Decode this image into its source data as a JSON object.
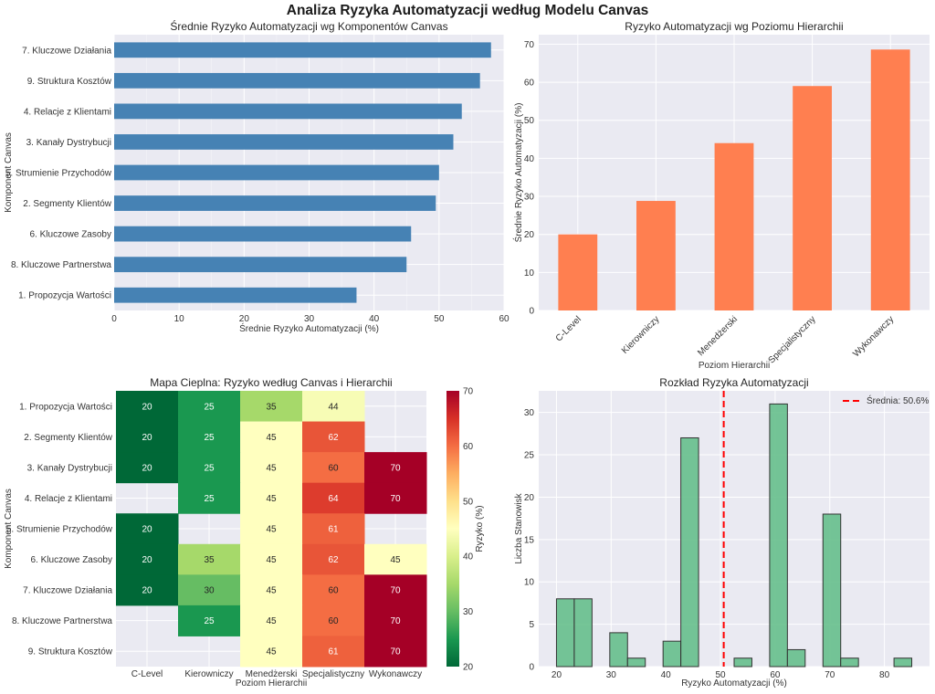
{
  "suptitle": "Analiza Ryzyka Automatyzacji według Modelu Canvas",
  "chart_data": [
    {
      "type": "bar",
      "orientation": "horizontal",
      "title": "Średnie Ryzyko Automatyzacji wg Komponentów Canvas",
      "xlabel": "Średnie Ryzyko Automatyzacji (%)",
      "ylabel": "Komponent Canvas",
      "xlim": [
        0,
        60
      ],
      "xticks": [
        0,
        10,
        20,
        30,
        40,
        50,
        60
      ],
      "categories": [
        "7. Kluczowe Działania",
        "9. Struktura Kosztów",
        "4. Relacje z Klientami",
        "3. Kanały Dystrybucji",
        "5. Strumienie Przychodów",
        "2. Segmenty Klientów",
        "6. Kluczowe Zasoby",
        "8. Kluczowe Partnerstwa",
        "1. Propozycja Wartości"
      ],
      "values": [
        58.0,
        56.3,
        53.5,
        52.2,
        50.0,
        49.5,
        45.7,
        45.0,
        37.3
      ],
      "color": "#4682b4",
      "grid": true
    },
    {
      "type": "bar",
      "title": "Ryzyko Automatyzacji wg Poziomu Hierarchii",
      "xlabel": "Poziom Hierarchii",
      "ylabel": "Średnie Ryzyko Automatyzacji (%)",
      "ylim": [
        0,
        72.5
      ],
      "yticks": [
        0,
        10,
        20,
        30,
        40,
        50,
        60,
        70
      ],
      "categories": [
        "C-Level",
        "Kierowniczy",
        "Menedżerski",
        "Specjalistyczny",
        "Wykonawczy"
      ],
      "values": [
        20.0,
        28.8,
        44.0,
        59.0,
        68.6
      ],
      "color": "#ff7f50",
      "grid": true
    },
    {
      "type": "heatmap",
      "title": "Mapa Cieplna: Ryzyko według Canvas i Hierarchii",
      "xlabel": "Poziom Hierarchii",
      "ylabel": "Komponent Canvas",
      "colorbar_label": "Ryzyko (%)",
      "colormap": "RdYlGn_r",
      "vmin": 20,
      "vmax": 70,
      "colorbar_ticks": [
        20,
        30,
        40,
        50,
        60,
        70
      ],
      "columns": [
        "C-Level",
        "Kierowniczy",
        "Menedżerski",
        "Specjalistyczny",
        "Wykonawczy"
      ],
      "rows": [
        "1. Propozycja Wartości",
        "2. Segmenty Klientów",
        "3. Kanały Dystrybucji",
        "4. Relacje z Klientami",
        "5. Strumienie Przychodów",
        "6. Kluczowe Zasoby",
        "7. Kluczowe Działania",
        "8. Kluczowe Partnerstwa",
        "9. Struktura Kosztów"
      ],
      "values": [
        [
          20,
          25,
          35,
          44,
          null
        ],
        [
          20,
          25,
          45,
          62,
          null
        ],
        [
          20,
          25,
          45,
          60,
          70
        ],
        [
          null,
          25,
          45,
          64,
          70
        ],
        [
          20,
          null,
          45,
          61,
          null
        ],
        [
          20,
          35,
          45,
          62,
          45
        ],
        [
          20,
          30,
          45,
          60,
          70
        ],
        [
          null,
          25,
          45,
          60,
          70
        ],
        [
          null,
          null,
          45,
          61,
          70
        ]
      ]
    },
    {
      "type": "histogram",
      "title": "Rozkład Ryzyka Automatyzacji",
      "xlabel": "Ryzyko Automatyzacji (%)",
      "ylabel": "Liczba Stanowisk",
      "bin_start": 20,
      "bin_end": 85,
      "bins": 20,
      "counts": [
        8,
        8,
        0,
        4,
        1,
        0,
        3,
        27,
        0,
        0,
        1,
        0,
        31,
        2,
        0,
        18,
        1,
        0,
        0,
        1
      ],
      "xlim": [
        16.75,
        88.25
      ],
      "ylim": [
        0,
        32.55
      ],
      "xticks": [
        20,
        30,
        40,
        50,
        60,
        70,
        80
      ],
      "yticks": [
        0,
        5,
        10,
        15,
        20,
        25,
        30
      ],
      "mean_line": {
        "value": 50.6,
        "label": "Średnia: 50.6%",
        "color": "#ff0000"
      },
      "color": "#66bf8c",
      "legend": "top-right",
      "grid": true
    }
  ]
}
